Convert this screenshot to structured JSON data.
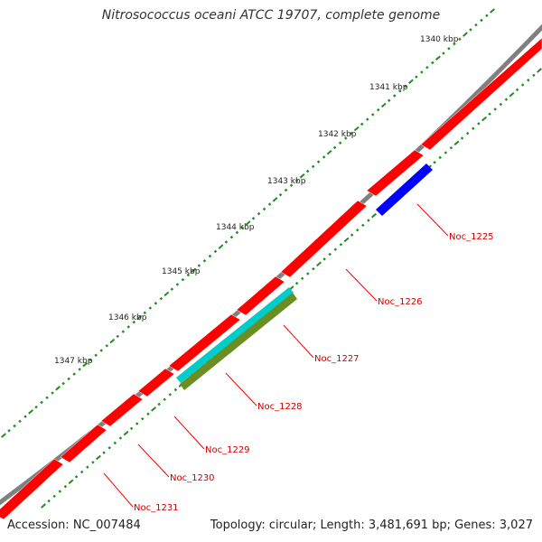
{
  "title": "Nitrosococcus oceani ATCC 19707, complete genome",
  "footer": {
    "accession": "Accession: NC_007484",
    "summary": "Topology: circular; Length: 3,481,691 bp; Genes: 3,027"
  },
  "ruler": {
    "labels": [
      "1340 kbp",
      "1341 kbp",
      "1342 kbp",
      "1343 kbp",
      "1344 kbp",
      "1345 kbp",
      "1346 kbp",
      "1347 kbp"
    ]
  },
  "genes": [
    {
      "name": "Noc_1225",
      "color": "#ff0000",
      "track_color": "#0000ff"
    },
    {
      "name": "Noc_1226",
      "color": "#ff0000"
    },
    {
      "name": "Noc_1227",
      "color": "#ff0000",
      "track_color": "#00cccc"
    },
    {
      "name": "Noc_1228",
      "color": "#ff0000",
      "track_color": "#6b8e23"
    },
    {
      "name": "Noc_1229",
      "color": "#ff0000"
    },
    {
      "name": "Noc_1230",
      "color": "#ff0000"
    },
    {
      "name": "Noc_1231",
      "color": "#ff0000"
    }
  ],
  "colors": {
    "backbone": "#808080",
    "gene": "#ff0000",
    "tick": "#228b22",
    "label": "#cc0000"
  }
}
